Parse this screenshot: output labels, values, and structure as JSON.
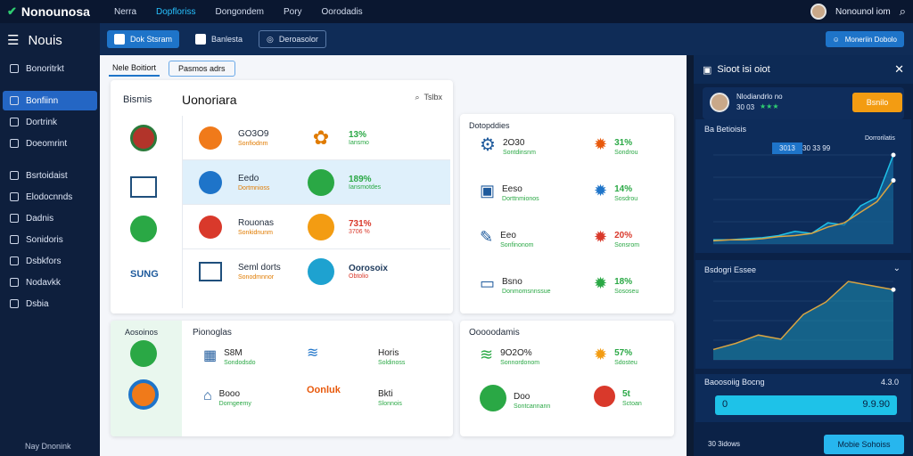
{
  "topbar": {
    "brand": "Nonounosa",
    "nav": [
      "Nerra",
      "Dopfloriss",
      "Dongondem",
      "Pory",
      "Oorodadis"
    ],
    "active_index": 1,
    "user": "Nonounol iom"
  },
  "sidebar": {
    "title": "Nouis",
    "items": [
      {
        "label": "Bonoritrkt",
        "active": false
      },
      {
        "label": "Bonfiinn",
        "active": true
      },
      {
        "label": "Dortrink",
        "active": false
      },
      {
        "label": "Doeomrint",
        "active": false
      },
      {
        "label": "Bsrtoidaist",
        "active": false
      },
      {
        "label": "Elodocnnds",
        "active": false
      },
      {
        "label": "Dadnis",
        "active": false
      },
      {
        "label": "Sonidoris",
        "active": false
      },
      {
        "label": "Dsbkfors",
        "active": false
      },
      {
        "label": "Nodavkk",
        "active": false
      },
      {
        "label": "Dsbia",
        "active": false
      }
    ],
    "footer": "Nay Dnonink"
  },
  "main_header": {
    "tab_primary": "Dok Stsram",
    "tab_secondary": "Banlesta",
    "tab_outline": "Deroasolor"
  },
  "subtabs": {
    "first": "Nele Boitiort",
    "second": "Pasmos adrs"
  },
  "panel_main": {
    "left_label": "Bismis",
    "title": "Uonoriara",
    "search": "Tslbx",
    "left_icons": [
      {
        "label": ""
      },
      {
        "label": ""
      },
      {
        "label": ""
      },
      {
        "label": "SUNG"
      }
    ],
    "rows": [
      {
        "name": "GO3O9",
        "sub": "Sonfiodnm",
        "pct": "13%",
        "pct_sub": "Iansmo"
      },
      {
        "name": "Eedo",
        "sub": "Dortmnioss",
        "pct": "189%",
        "pct_sub": "Iansmotdes"
      },
      {
        "name": "Rouonas",
        "sub": "Sonkidnunm",
        "pct": "731%",
        "pct_sub": "3706 %"
      },
      {
        "name": "Seml dorts",
        "sub": "Sonodmnnor",
        "pct": "Oorosoix",
        "pct_sub": "Obtolio"
      }
    ]
  },
  "panel_components": {
    "title": "Dotopddies",
    "rows": [
      {
        "name": "2O30",
        "sub": "Sontdinsnm",
        "pct": "31%",
        "pct_sub": "Sondrou"
      },
      {
        "name": "Eeso",
        "sub": "Dorttnmionos",
        "pct": "14%",
        "pct_sub": "Sosdrou"
      },
      {
        "name": "Eeo",
        "sub": "Sonfinonom",
        "pct": "20%",
        "pct_sub": "Sonsrom"
      },
      {
        "name": "Bsno",
        "sub": "Donmomsnnssue",
        "pct": "18%",
        "pct_sub": "Sososeu"
      }
    ]
  },
  "panel_bottom_left": {
    "left_label": "Aosoinos",
    "title": "Pionoglas",
    "items": [
      {
        "name": "S8M",
        "sub": "Sondodsdo"
      },
      {
        "name": "Horis",
        "sub": "Soldinoss"
      },
      {
        "name": "Booo",
        "sub": "Dorngeemy"
      },
      {
        "name": "Bkti",
        "sub": "Slonnois"
      },
      {
        "name": "Oonluk",
        "sub": ""
      }
    ]
  },
  "panel_bottom_right": {
    "title": "Ooooodamis",
    "rows": [
      {
        "name": "9O2O%",
        "sub": "Sonnordonom",
        "pct": "57%",
        "pct_sub": "Sdosteu"
      },
      {
        "name": "Doo",
        "sub": "Sontcannann",
        "pct": "5t",
        "pct_sub": "Sctoan"
      }
    ]
  },
  "right_panel": {
    "title": "Sioot isi oiot",
    "user_name": "Nlodiandrlo no",
    "user_sub": "30 03",
    "action_button": "Bsnilo",
    "chart1_title": "Ba Betioisis",
    "chart1_badge": "3013",
    "chart1_sub": "30 33 99",
    "chart1_right": "Dorrorilatis",
    "chart2_title": "Bsdogri Essee",
    "stat_title": "Baoosoiig Bocng",
    "stat_right": "4.3.0",
    "stat_value_left": "0",
    "stat_value_right": "9.9.90",
    "footer_left": "30 3idows",
    "footer_button": "Mobie Sohoiss",
    "header_button": "Moneriin Dobolo"
  },
  "colors": {
    "accent": "#1e74c9",
    "orange": "#f39c12",
    "green": "#2aa845",
    "cyan": "#1ec2e8"
  },
  "chart_data": [
    {
      "type": "area",
      "x": [
        0,
        1,
        2,
        3,
        4,
        5,
        6,
        7,
        8,
        9,
        10,
        11
      ],
      "series": [
        {
          "values": [
            2,
            2,
            2.5,
            3,
            4,
            6,
            5,
            10,
            9,
            18,
            22,
            42
          ]
        },
        {
          "values": [
            1.5,
            2,
            2,
            2.5,
            3.5,
            4,
            5,
            8,
            10,
            15,
            20,
            30
          ]
        }
      ]
    },
    {
      "type": "area",
      "x": [
        0,
        1,
        2,
        3,
        4,
        5,
        6,
        7,
        8
      ],
      "series": [
        {
          "values": [
            5,
            8,
            12,
            10,
            22,
            28,
            38,
            36,
            34
          ]
        }
      ]
    }
  ]
}
